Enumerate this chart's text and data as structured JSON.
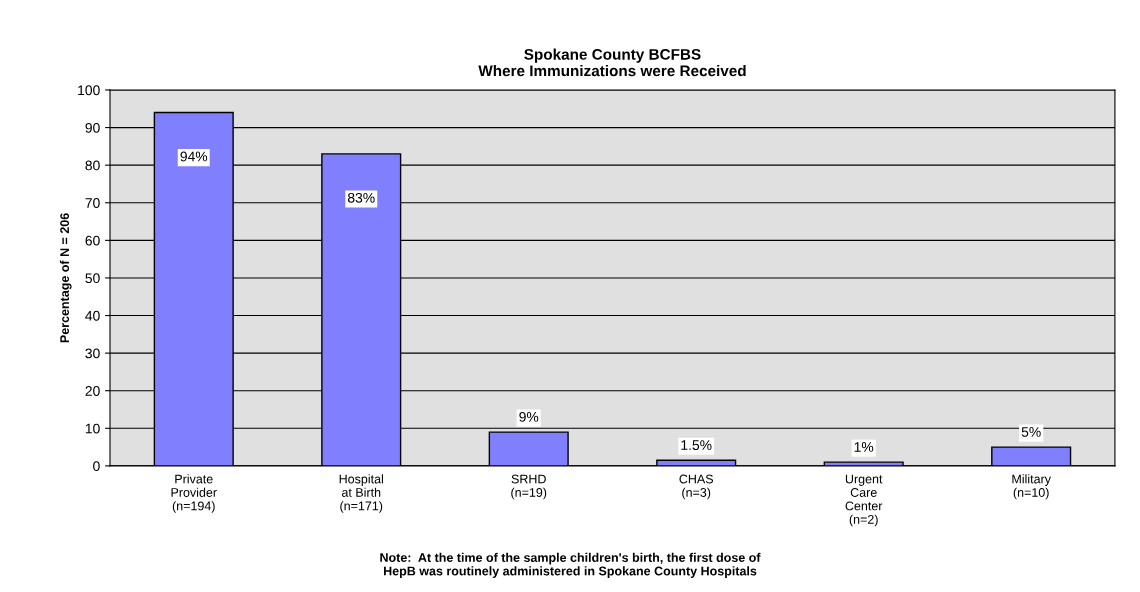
{
  "chart_data": {
    "type": "bar",
    "title": "Spokane County BCFBS\nWhere Immunizations were Received",
    "ylabel": "Percentage of N = 206",
    "categories": [
      "Private\nProvider\n(n=194)",
      "Hospital\nat Birth\n(n=171)",
      "SRHD\n(n=19)",
      "CHAS\n(n=3)",
      "Urgent\nCare\nCenter\n(n=2)",
      "Military\n(n=10)"
    ],
    "values": [
      94,
      83,
      9,
      1.5,
      1,
      5
    ],
    "value_labels": [
      "94%",
      "83%",
      "9%",
      "1.5%",
      "1%",
      "5%"
    ],
    "color": "#8080ff",
    "ylim": [
      0,
      100
    ],
    "yticks": [
      0,
      10,
      20,
      30,
      40,
      50,
      60,
      70,
      80,
      90,
      100
    ],
    "grid": "y",
    "legend": false,
    "annotations": [
      "Note:  At the time of the sample children's birth, the first dose of\nHepB was routinely administered in Spokane County Hospitals"
    ]
  }
}
